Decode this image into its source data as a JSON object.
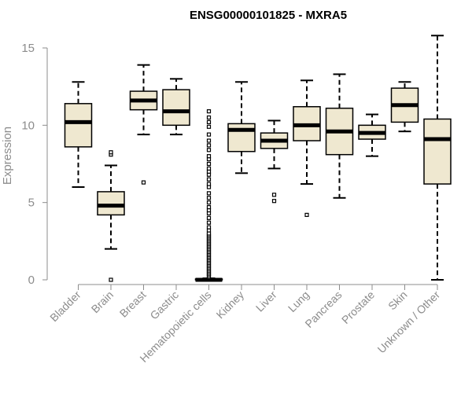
{
  "chart_data": {
    "type": "boxplot",
    "title": "ENSG00000101825 - MXRA5",
    "xlabel": "",
    "ylabel": "Expression",
    "ylim": [
      0,
      16
    ],
    "yticks": [
      0,
      5,
      10,
      15
    ],
    "colors": {
      "box_fill": "#efe8d0",
      "stroke": "#000000",
      "axis": "#8c8c8c"
    },
    "categories": [
      "Bladder",
      "Brain",
      "Breast",
      "Gastric",
      "Hematopoietic cells",
      "Kidney",
      "Liver",
      "Lung",
      "Pancreas",
      "Prostate",
      "Skin",
      "Unknown / Other"
    ],
    "boxes": [
      {
        "category": "Bladder",
        "whisker_low": 6.0,
        "q1": 8.6,
        "median": 10.2,
        "q3": 11.4,
        "whisker_high": 12.8,
        "outliers": []
      },
      {
        "category": "Brain",
        "whisker_low": 2.0,
        "q1": 4.2,
        "median": 4.8,
        "q3": 5.7,
        "whisker_high": 7.4,
        "outliers": [
          0.0,
          8.1,
          8.25
        ]
      },
      {
        "category": "Breast",
        "whisker_low": 9.4,
        "q1": 11.0,
        "median": 11.6,
        "q3": 12.2,
        "whisker_high": 13.9,
        "outliers": [
          6.3
        ]
      },
      {
        "category": "Gastric",
        "whisker_low": 9.4,
        "q1": 10.0,
        "median": 10.9,
        "q3": 12.3,
        "whisker_high": 13.0,
        "outliers": []
      },
      {
        "category": "Hematopoietic cells",
        "whisker_low": 0.0,
        "q1": 0.0,
        "median": 0.0,
        "q3": 0.05,
        "whisker_high": 0.1,
        "outliers": [
          0.2,
          0.3,
          0.4,
          0.5,
          0.6,
          0.7,
          0.8,
          0.9,
          1.0,
          1.1,
          1.2,
          1.3,
          1.4,
          1.5,
          1.6,
          1.7,
          1.8,
          1.9,
          2.0,
          2.1,
          2.2,
          2.3,
          2.4,
          2.5,
          2.6,
          2.7,
          2.8,
          2.9,
          3.0,
          3.2,
          3.4,
          3.7,
          4.0,
          4.3,
          4.5,
          4.7,
          5.0,
          5.3,
          5.6,
          6.0,
          6.2,
          6.5,
          6.8,
          7.0,
          7.2,
          7.5,
          7.8,
          8.0,
          8.4,
          8.7,
          9.0,
          9.4,
          9.9,
          10.2,
          10.5,
          10.9
        ]
      },
      {
        "category": "Kidney",
        "whisker_low": 6.9,
        "q1": 8.3,
        "median": 9.7,
        "q3": 10.1,
        "whisker_high": 12.8,
        "outliers": []
      },
      {
        "category": "Liver",
        "whisker_low": 7.2,
        "q1": 8.5,
        "median": 9.0,
        "q3": 9.5,
        "whisker_high": 10.3,
        "outliers": [
          5.1,
          5.5
        ]
      },
      {
        "category": "Lung",
        "whisker_low": 6.2,
        "q1": 9.0,
        "median": 10.0,
        "q3": 11.2,
        "whisker_high": 12.9,
        "outliers": [
          4.2
        ]
      },
      {
        "category": "Pancreas",
        "whisker_low": 5.3,
        "q1": 8.1,
        "median": 9.6,
        "q3": 11.1,
        "whisker_high": 13.3,
        "outliers": []
      },
      {
        "category": "Prostate",
        "whisker_low": 8.0,
        "q1": 9.1,
        "median": 9.5,
        "q3": 10.0,
        "whisker_high": 10.7,
        "outliers": []
      },
      {
        "category": "Skin",
        "whisker_low": 9.6,
        "q1": 10.2,
        "median": 11.3,
        "q3": 12.4,
        "whisker_high": 12.8,
        "outliers": []
      },
      {
        "category": "Unknown / Other",
        "whisker_low": 0.0,
        "q1": 6.2,
        "median": 9.1,
        "q3": 10.4,
        "whisker_high": 15.8,
        "outliers": []
      }
    ]
  }
}
